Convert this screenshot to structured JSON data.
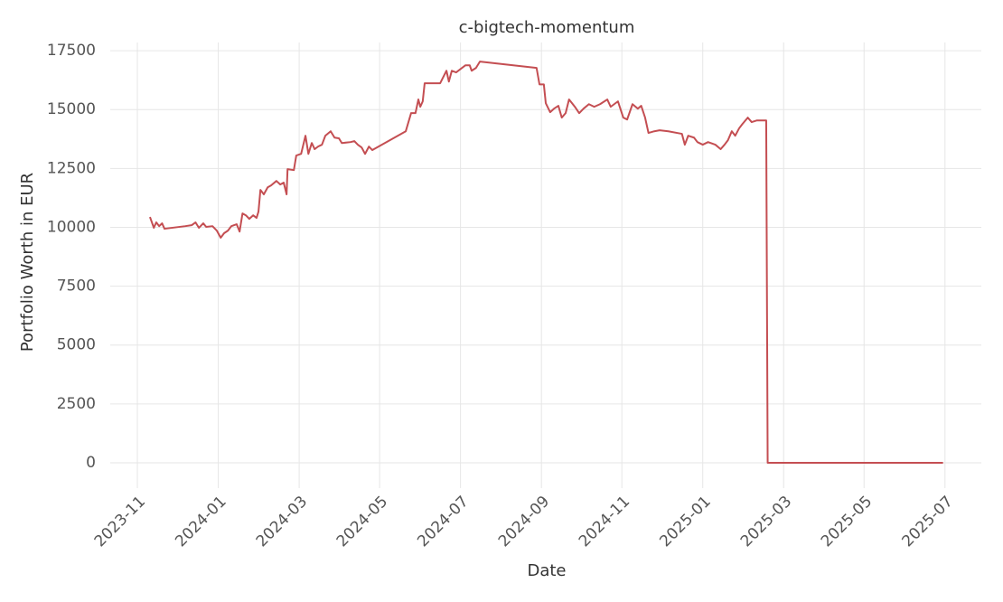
{
  "chart_data": {
    "type": "line",
    "title": "c-bigtech-momentum",
    "x_label": "Date",
    "y_label": "Portfolio Worth in EUR",
    "x": [
      2023.859,
      2023.867,
      2023.872,
      2023.878,
      2023.884,
      2023.889,
      2023.932,
      2023.945,
      2023.953,
      2023.96,
      2023.969,
      2023.975,
      2023.988,
      2023.997,
      2024.005,
      2024.012,
      2024.02,
      2024.027,
      2024.038,
      2024.044,
      2024.05,
      2024.057,
      2024.064,
      2024.072,
      2024.079,
      2024.083,
      2024.087,
      2024.094,
      2024.102,
      2024.109,
      2024.12,
      2024.128,
      2024.135,
      2024.141,
      2024.143,
      2024.156,
      2024.161,
      2024.171,
      2024.18,
      2024.186,
      2024.193,
      2024.199,
      2024.206,
      2024.214,
      2024.221,
      2024.232,
      2024.24,
      2024.249,
      2024.255,
      2024.273,
      2024.281,
      2024.288,
      2024.296,
      2024.303,
      2024.311,
      2024.318,
      2024.387,
      2024.398,
      2024.407,
      2024.413,
      2024.417,
      2024.422,
      2024.426,
      2024.458,
      2024.471,
      2024.476,
      2024.482,
      2024.491,
      2024.51,
      2024.519,
      2024.523,
      2024.532,
      2024.54,
      2024.657,
      2024.663,
      2024.672,
      2024.676,
      2024.685,
      2024.693,
      2024.702,
      2024.709,
      2024.717,
      2024.724,
      2024.736,
      2024.745,
      2024.754,
      2024.765,
      2024.776,
      2024.788,
      2024.803,
      2024.81,
      2024.825,
      2024.836,
      2024.844,
      2024.855,
      2024.866,
      2024.873,
      2024.881,
      2024.888,
      2024.9,
      2024.911,
      2024.929,
      2024.957,
      2024.963,
      2024.97,
      2024.982,
      2024.989,
      2025.0,
      2025.011,
      2025.026,
      2025.037,
      2025.045,
      2025.052,
      2025.06,
      2025.067,
      2025.075,
      2025.082,
      2025.093,
      2025.101,
      2025.112,
      2025.131,
      2025.134,
      2025.496
    ],
    "series": [
      {
        "color": "#c44e52",
        "values": [
          10440,
          9980,
          10210,
          10050,
          10170,
          9940,
          10050,
          10090,
          10210,
          9980,
          10170,
          10020,
          10050,
          9860,
          9560,
          9750,
          9860,
          10050,
          10130,
          9820,
          10590,
          10510,
          10360,
          10510,
          10400,
          10670,
          11590,
          11400,
          11700,
          11780,
          11970,
          11820,
          11900,
          11400,
          12470,
          12430,
          13050,
          13120,
          13890,
          13120,
          13580,
          13320,
          13430,
          13510,
          13890,
          14080,
          13810,
          13780,
          13580,
          13620,
          13660,
          13510,
          13390,
          13120,
          13430,
          13280,
          14080,
          14850,
          14850,
          15430,
          15120,
          15350,
          16120,
          16120,
          16650,
          16190,
          16650,
          16580,
          16880,
          16880,
          16650,
          16770,
          17040,
          16770,
          16070,
          16070,
          15270,
          14890,
          15040,
          15160,
          14660,
          14850,
          15430,
          15120,
          14850,
          15040,
          15230,
          15120,
          15230,
          15430,
          15120,
          15350,
          14660,
          14580,
          15230,
          15040,
          15160,
          14660,
          14010,
          14080,
          14120,
          14080,
          13970,
          13510,
          13890,
          13810,
          13620,
          13510,
          13620,
          13510,
          13320,
          13510,
          13700,
          14080,
          13890,
          14200,
          14390,
          14660,
          14470,
          14540,
          14540,
          0,
          0
        ]
      }
    ],
    "xlim": [
      2023.777,
      2025.575
    ],
    "ylim": [
      -1075,
      17850
    ],
    "xticks": [
      {
        "value": 2023.833,
        "label": "2023-11"
      },
      {
        "value": 2024.0,
        "label": "2024-01"
      },
      {
        "value": 2024.167,
        "label": "2024-03"
      },
      {
        "value": 2024.333,
        "label": "2024-05"
      },
      {
        "value": 2024.5,
        "label": "2024-07"
      },
      {
        "value": 2024.667,
        "label": "2024-09"
      },
      {
        "value": 2024.833,
        "label": "2024-11"
      },
      {
        "value": 2025.0,
        "label": "2025-01"
      },
      {
        "value": 2025.167,
        "label": "2025-03"
      },
      {
        "value": 2025.333,
        "label": "2025-05"
      },
      {
        "value": 2025.5,
        "label": "2025-07"
      }
    ],
    "yticks": [
      0,
      2500,
      5000,
      7500,
      10000,
      12500,
      15000,
      17500
    ],
    "grid": true
  }
}
